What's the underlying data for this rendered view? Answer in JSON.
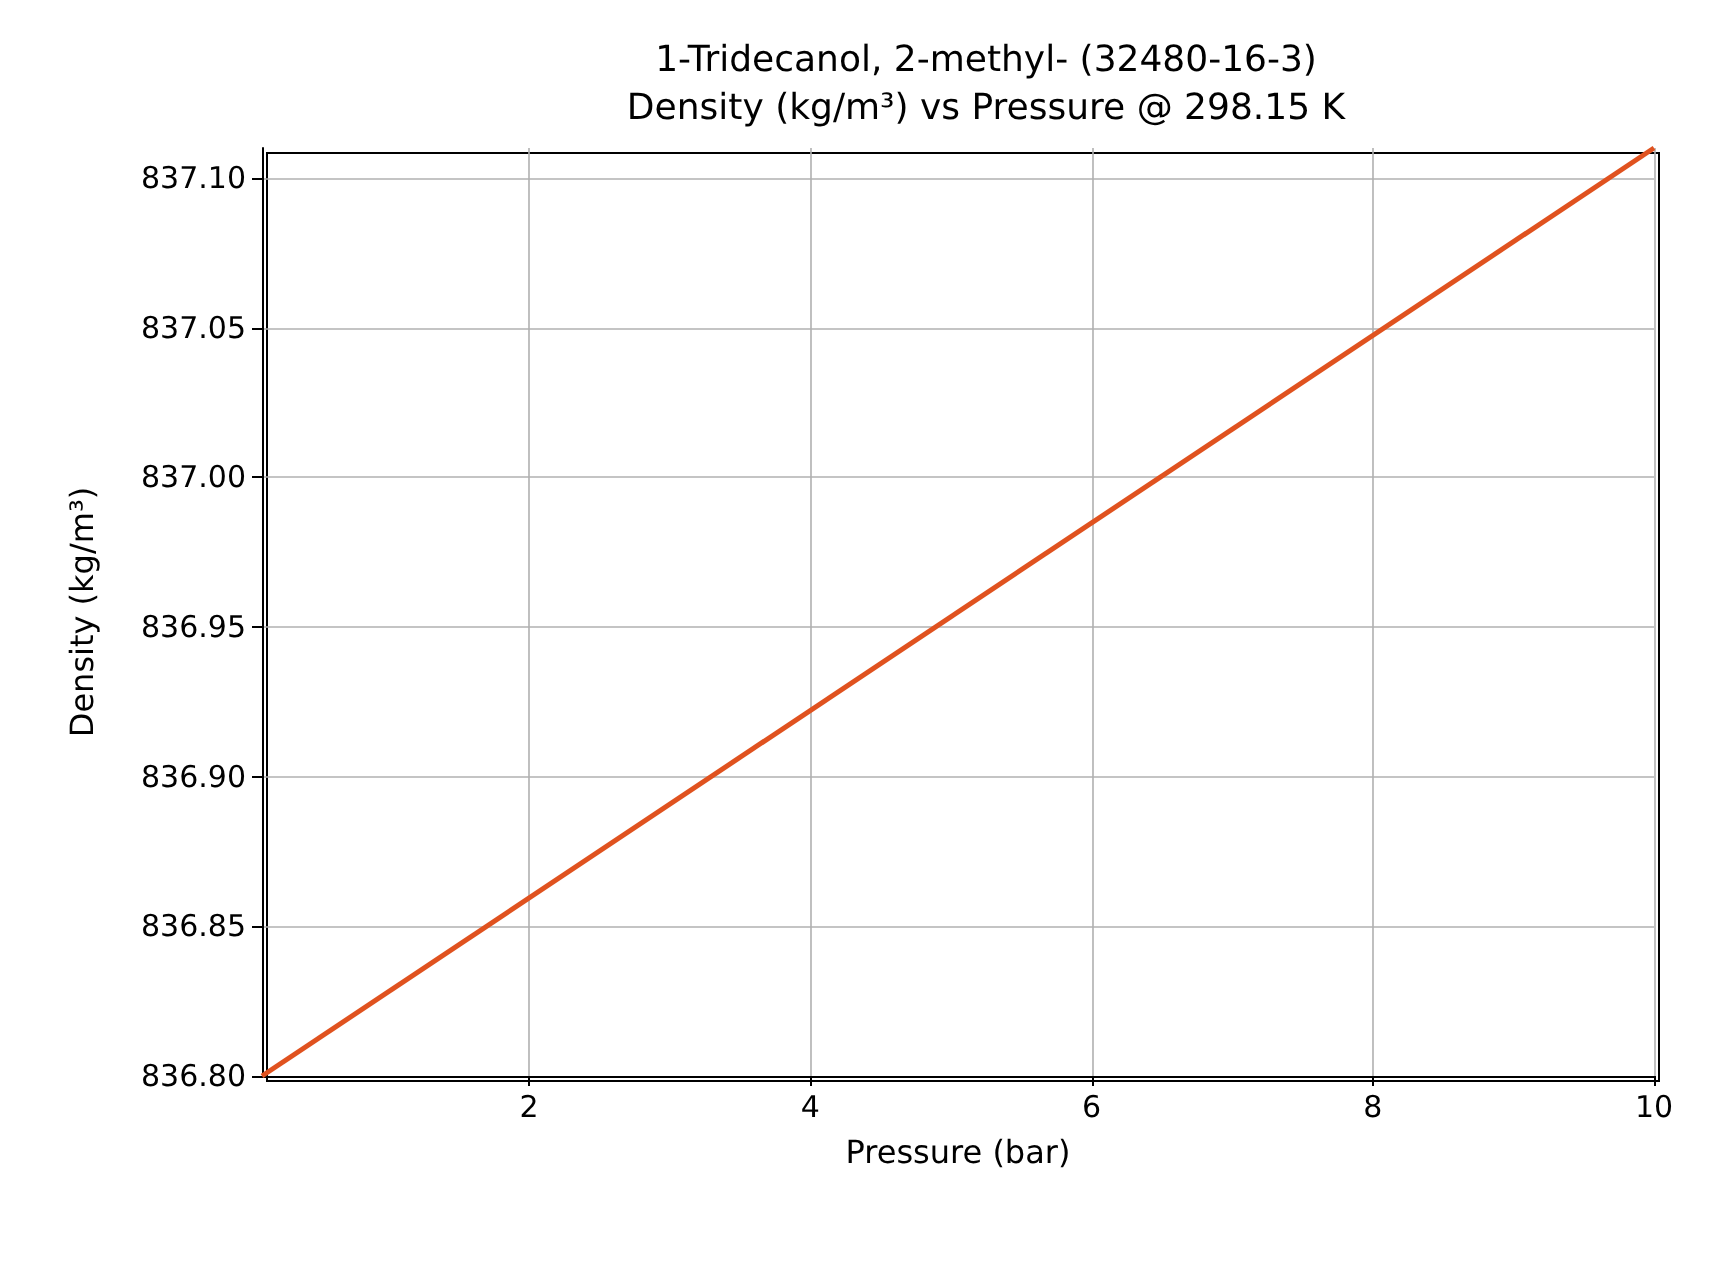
{
  "chart_data": {
    "type": "line",
    "title": "1-Tridecanol, 2-methyl- (32480-16-3)",
    "subtitle": "Density (kg/m³) vs Pressure @ 298.15 K",
    "xlabel": "Pressure (bar)",
    "ylabel": "Density (kg/m³)",
    "x": [
      0.1,
      10
    ],
    "series": [
      {
        "color": "#e0521f",
        "values": [
          836.8,
          837.11
        ]
      }
    ],
    "xlim": [
      0.1,
      10
    ],
    "xticks": [
      2,
      4,
      6,
      8,
      10
    ],
    "ylim": [
      836.8,
      837.11
    ],
    "yticks": [
      {
        "value": 836.8,
        "label": "836.80"
      },
      {
        "value": 836.85,
        "label": "836.85"
      },
      {
        "value": 836.9,
        "label": "836.90"
      },
      {
        "value": 836.95,
        "label": "836.95"
      },
      {
        "value": 837.0,
        "label": "837.00"
      },
      {
        "value": 837.05,
        "label": "837.05"
      },
      {
        "value": 837.1,
        "label": "837.10"
      }
    ],
    "grid": true,
    "marker": "none",
    "line_style": "solid"
  }
}
